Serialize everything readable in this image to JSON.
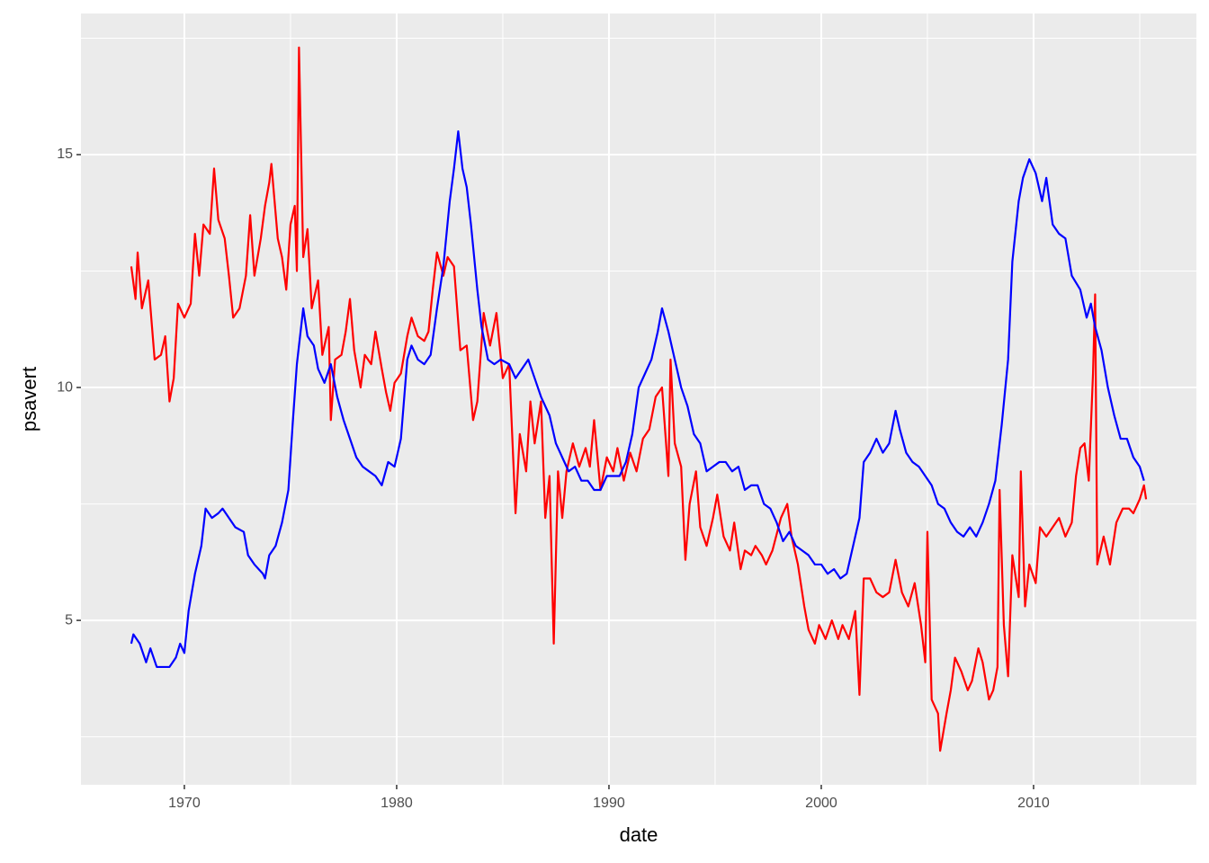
{
  "chart_data": {
    "type": "line",
    "x_label": "date",
    "y_label": "psavert",
    "xlim": [
      1965.13,
      2017.67
    ],
    "ylim": [
      1.47,
      18.03
    ],
    "xticks": [
      1970,
      1980,
      1990,
      2000,
      2010
    ],
    "yticks": [
      5,
      10,
      15
    ],
    "xminor": [
      1965,
      1975,
      1985,
      1995,
      2005,
      2015
    ],
    "yminor": [
      2.5,
      7.5,
      12.5,
      17.5
    ],
    "grid": true,
    "series": [
      {
        "color": "#ff0000",
        "x": [
          1967.5,
          1967.7,
          1967.8,
          1968.0,
          1968.3,
          1968.6,
          1968.9,
          1969.1,
          1969.3,
          1969.5,
          1969.7,
          1970.0,
          1970.3,
          1970.5,
          1970.7,
          1970.9,
          1971.2,
          1971.4,
          1971.6,
          1971.9,
          1972.1,
          1972.3,
          1972.6,
          1972.9,
          1973.1,
          1973.3,
          1973.6,
          1973.8,
          1974.0,
          1974.1,
          1974.4,
          1974.6,
          1974.8,
          1975.0,
          1975.2,
          1975.3,
          1975.4,
          1975.6,
          1975.8,
          1976.0,
          1976.3,
          1976.5,
          1976.8,
          1976.9,
          1977.1,
          1977.4,
          1977.6,
          1977.8,
          1978.0,
          1978.3,
          1978.5,
          1978.8,
          1979.0,
          1979.3,
          1979.5,
          1979.7,
          1979.9,
          1980.2,
          1980.5,
          1980.7,
          1981.0,
          1981.3,
          1981.5,
          1981.7,
          1981.9,
          1982.2,
          1982.4,
          1982.7,
          1983.0,
          1983.3,
          1983.6,
          1983.8,
          1984.1,
          1984.4,
          1984.7,
          1985.0,
          1985.3,
          1985.6,
          1985.8,
          1986.1,
          1986.3,
          1986.5,
          1986.8,
          1987.0,
          1987.2,
          1987.4,
          1987.6,
          1987.8,
          1988.0,
          1988.3,
          1988.6,
          1988.9,
          1989.1,
          1989.3,
          1989.6,
          1989.9,
          1990.2,
          1990.4,
          1990.7,
          1991.0,
          1991.3,
          1991.6,
          1991.9,
          1992.2,
          1992.5,
          1992.8,
          1992.9,
          1993.1,
          1993.4,
          1993.6,
          1993.8,
          1994.1,
          1994.3,
          1994.6,
          1994.9,
          1995.1,
          1995.4,
          1995.7,
          1995.9,
          1996.2,
          1996.4,
          1996.7,
          1996.9,
          1997.2,
          1997.4,
          1997.7,
          1998.1,
          1998.4,
          1998.6,
          1998.9,
          1999.2,
          1999.4,
          1999.7,
          1999.9,
          2000.2,
          2000.5,
          2000.8,
          2001.0,
          2001.3,
          2001.6,
          2001.8,
          2002.0,
          2002.3,
          2002.6,
          2002.9,
          2003.2,
          2003.5,
          2003.8,
          2004.1,
          2004.4,
          2004.7,
          2004.9,
          2005.0,
          2005.2,
          2005.5,
          2005.6,
          2005.9,
          2006.1,
          2006.3,
          2006.6,
          2006.9,
          2007.1,
          2007.4,
          2007.6,
          2007.9,
          2008.1,
          2008.3,
          2008.4,
          2008.6,
          2008.8,
          2009.0,
          2009.3,
          2009.4,
          2009.6,
          2009.8,
          2010.1,
          2010.3,
          2010.6,
          2010.9,
          2011.2,
          2011.5,
          2011.8,
          2012.0,
          2012.2,
          2012.4,
          2012.6,
          2012.8,
          2012.9,
          2013.0,
          2013.3,
          2013.6,
          2013.9,
          2014.2,
          2014.5,
          2014.7,
          2015.0,
          2015.2,
          2015.3
        ],
        "values": [
          12.6,
          11.9,
          12.9,
          11.7,
          12.3,
          10.6,
          10.7,
          11.1,
          9.7,
          10.2,
          11.8,
          11.5,
          11.8,
          13.3,
          12.4,
          13.5,
          13.3,
          14.7,
          13.6,
          13.2,
          12.4,
          11.5,
          11.7,
          12.4,
          13.7,
          12.4,
          13.2,
          13.9,
          14.4,
          14.8,
          13.2,
          12.8,
          12.1,
          13.5,
          13.9,
          12.5,
          17.3,
          12.8,
          13.4,
          11.7,
          12.3,
          10.7,
          11.3,
          9.3,
          10.6,
          10.7,
          11.2,
          11.9,
          10.8,
          10.0,
          10.7,
          10.5,
          11.2,
          10.4,
          9.9,
          9.5,
          10.1,
          10.3,
          11.1,
          11.5,
          11.1,
          11.0,
          11.2,
          12.1,
          12.9,
          12.4,
          12.8,
          12.6,
          10.8,
          10.9,
          9.3,
          9.7,
          11.6,
          10.9,
          11.6,
          10.2,
          10.5,
          7.3,
          9.0,
          8.2,
          9.7,
          8.8,
          9.7,
          7.2,
          8.1,
          4.5,
          8.2,
          7.2,
          8.2,
          8.8,
          8.3,
          8.7,
          8.3,
          9.3,
          7.8,
          8.5,
          8.2,
          8.7,
          8.0,
          8.6,
          8.2,
          8.9,
          9.1,
          9.8,
          10.0,
          8.1,
          10.6,
          8.8,
          8.3,
          6.3,
          7.5,
          8.2,
          7.0,
          6.6,
          7.2,
          7.7,
          6.8,
          6.5,
          7.1,
          6.1,
          6.5,
          6.4,
          6.6,
          6.4,
          6.2,
          6.5,
          7.2,
          7.5,
          6.8,
          6.2,
          5.3,
          4.8,
          4.5,
          4.9,
          4.6,
          5.0,
          4.6,
          4.9,
          4.6,
          5.2,
          3.4,
          5.9,
          5.9,
          5.6,
          5.5,
          5.6,
          6.3,
          5.6,
          5.3,
          5.8,
          4.9,
          4.1,
          6.9,
          3.3,
          3.0,
          2.2,
          3.0,
          3.5,
          4.2,
          3.9,
          3.5,
          3.7,
          4.4,
          4.1,
          3.3,
          3.5,
          4.0,
          7.8,
          4.9,
          3.8,
          6.4,
          5.5,
          8.2,
          5.3,
          6.2,
          5.8,
          7.0,
          6.8,
          7.0,
          7.2,
          6.8,
          7.1,
          8.1,
          8.7,
          8.8,
          8.0,
          10.3,
          12.0,
          6.2,
          6.8,
          6.2,
          7.1,
          7.4,
          7.4,
          7.3,
          7.6,
          7.9,
          7.6
        ]
      },
      {
        "color": "#0000ff",
        "x": [
          1967.5,
          1967.6,
          1967.9,
          1968.2,
          1968.4,
          1968.7,
          1969.0,
          1969.3,
          1969.6,
          1969.8,
          1970.0,
          1970.2,
          1970.5,
          1970.8,
          1971.0,
          1971.3,
          1971.6,
          1971.8,
          1972.1,
          1972.4,
          1972.8,
          1973.0,
          1973.3,
          1973.7,
          1973.8,
          1974.0,
          1974.3,
          1974.6,
          1974.9,
          1975.1,
          1975.3,
          1975.5,
          1975.6,
          1975.8,
          1976.1,
          1976.3,
          1976.6,
          1976.9,
          1977.2,
          1977.5,
          1977.8,
          1978.1,
          1978.4,
          1978.7,
          1979.0,
          1979.3,
          1979.6,
          1979.9,
          1980.2,
          1980.5,
          1980.7,
          1981.0,
          1981.3,
          1981.6,
          1981.9,
          1982.2,
          1982.5,
          1982.7,
          1982.9,
          1983.1,
          1983.3,
          1983.5,
          1983.8,
          1984.0,
          1984.3,
          1984.6,
          1984.9,
          1985.3,
          1985.6,
          1985.9,
          1986.2,
          1986.5,
          1986.8,
          1987.2,
          1987.5,
          1987.8,
          1988.1,
          1988.4,
          1988.7,
          1989.0,
          1989.3,
          1989.6,
          1989.9,
          1990.2,
          1990.5,
          1990.8,
          1991.1,
          1991.4,
          1991.7,
          1992.0,
          1992.3,
          1992.5,
          1992.8,
          1993.1,
          1993.4,
          1993.7,
          1994.0,
          1994.3,
          1994.6,
          1994.9,
          1995.2,
          1995.5,
          1995.8,
          1996.1,
          1996.4,
          1996.7,
          1997.0,
          1997.3,
          1997.6,
          1997.9,
          1998.2,
          1998.5,
          1998.8,
          1999.1,
          1999.4,
          1999.7,
          2000.0,
          2000.3,
          2000.6,
          2000.9,
          2001.2,
          2001.5,
          2001.8,
          2002.0,
          2002.3,
          2002.6,
          2002.9,
          2003.2,
          2003.5,
          2003.7,
          2004.0,
          2004.3,
          2004.6,
          2004.9,
          2005.2,
          2005.5,
          2005.8,
          2006.1,
          2006.4,
          2006.7,
          2007.0,
          2007.3,
          2007.6,
          2007.9,
          2008.2,
          2008.5,
          2008.8,
          2009.0,
          2009.3,
          2009.5,
          2009.8,
          2010.1,
          2010.4,
          2010.6,
          2010.9,
          2011.2,
          2011.5,
          2011.8,
          2012.2,
          2012.5,
          2012.7,
          2012.9,
          2013.2,
          2013.5,
          2013.8,
          2014.1,
          2014.4,
          2014.7,
          2015.0,
          2015.2
        ],
        "values": [
          4.5,
          4.7,
          4.5,
          4.1,
          4.4,
          4.0,
          4.0,
          4.0,
          4.2,
          4.5,
          4.3,
          5.2,
          6.0,
          6.6,
          7.4,
          7.2,
          7.3,
          7.4,
          7.2,
          7.0,
          6.9,
          6.4,
          6.2,
          6.0,
          5.9,
          6.4,
          6.6,
          7.1,
          7.8,
          9.2,
          10.5,
          11.3,
          11.7,
          11.1,
          10.9,
          10.4,
          10.1,
          10.5,
          9.8,
          9.3,
          8.9,
          8.5,
          8.3,
          8.2,
          8.1,
          7.9,
          8.4,
          8.3,
          8.9,
          10.6,
          10.9,
          10.6,
          10.5,
          10.7,
          11.7,
          12.6,
          14.0,
          14.7,
          15.5,
          14.7,
          14.3,
          13.5,
          12.1,
          11.3,
          10.6,
          10.5,
          10.6,
          10.5,
          10.2,
          10.4,
          10.6,
          10.2,
          9.8,
          9.4,
          8.8,
          8.5,
          8.2,
          8.3,
          8.0,
          8.0,
          7.8,
          7.8,
          8.1,
          8.1,
          8.1,
          8.4,
          9.0,
          10.0,
          10.3,
          10.6,
          11.2,
          11.7,
          11.2,
          10.6,
          10.0,
          9.6,
          9.0,
          8.8,
          8.2,
          8.3,
          8.4,
          8.4,
          8.2,
          8.3,
          7.8,
          7.9,
          7.9,
          7.5,
          7.4,
          7.1,
          6.7,
          6.9,
          6.6,
          6.5,
          6.4,
          6.2,
          6.2,
          6.0,
          6.1,
          5.9,
          6.0,
          6.6,
          7.2,
          8.4,
          8.6,
          8.9,
          8.6,
          8.8,
          9.5,
          9.1,
          8.6,
          8.4,
          8.3,
          8.1,
          7.9,
          7.5,
          7.4,
          7.1,
          6.9,
          6.8,
          7.0,
          6.8,
          7.1,
          7.5,
          8.0,
          9.2,
          10.6,
          12.7,
          14.0,
          14.5,
          14.9,
          14.6,
          14.0,
          14.5,
          13.5,
          13.3,
          13.2,
          12.4,
          12.1,
          11.5,
          11.8,
          11.3,
          10.8,
          10.0,
          9.4,
          8.9,
          8.9,
          8.5,
          8.3,
          8.0
        ]
      }
    ]
  }
}
